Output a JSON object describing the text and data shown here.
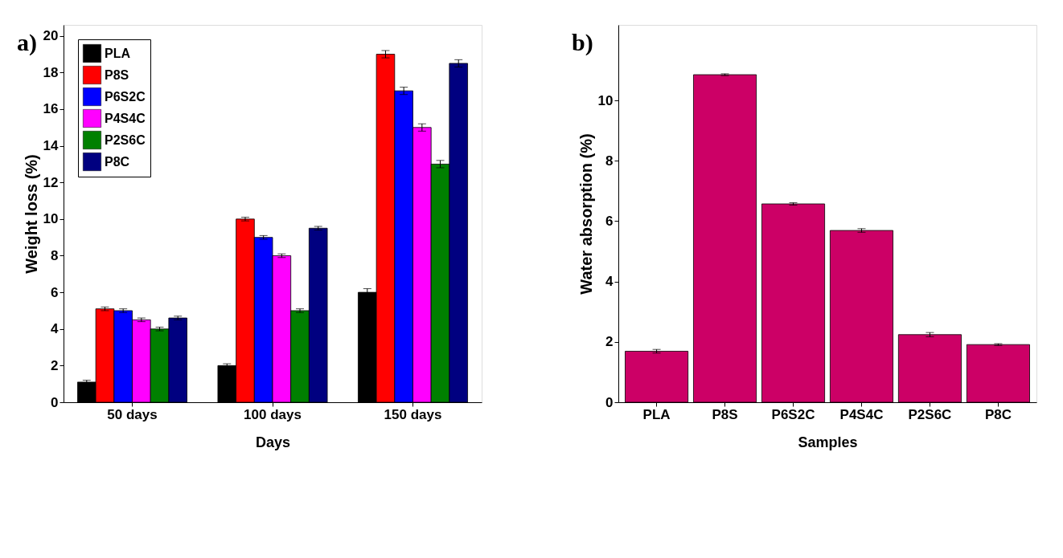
{
  "chart_data": [
    {
      "type": "bar",
      "xlabel": "Days",
      "ylabel": "Weight loss (%)",
      "categories": [
        "50 days",
        "100 days",
        "150 days"
      ],
      "series": [
        {
          "name": "PLA",
          "color": "#000000",
          "values": [
            1.1,
            2.0,
            6.0
          ],
          "errors": [
            0.1,
            0.1,
            0.2
          ]
        },
        {
          "name": "P8S",
          "color": "#ff0000",
          "values": [
            5.1,
            10.0,
            19.0
          ],
          "errors": [
            0.1,
            0.1,
            0.2
          ]
        },
        {
          "name": "P6S2C",
          "color": "#0000ff",
          "values": [
            5.0,
            9.0,
            17.0
          ],
          "errors": [
            0.1,
            0.1,
            0.2
          ]
        },
        {
          "name": "P4S4C",
          "color": "#ff00ff",
          "values": [
            4.5,
            8.0,
            15.0
          ],
          "errors": [
            0.1,
            0.1,
            0.2
          ]
        },
        {
          "name": "P2S6C",
          "color": "#008000",
          "values": [
            4.0,
            5.0,
            13.0
          ],
          "errors": [
            0.1,
            0.1,
            0.2
          ]
        },
        {
          "name": "P8C",
          "color": "#000080",
          "values": [
            4.6,
            9.5,
            18.5
          ],
          "errors": [
            0.1,
            0.1,
            0.2
          ]
        }
      ],
      "ylim": [
        0,
        20.6
      ],
      "yticks": [
        0,
        2,
        4,
        6,
        8,
        10,
        12,
        14,
        16,
        18,
        20
      ],
      "legend": "top left",
      "grid": false,
      "annotations": [
        "a)"
      ]
    },
    {
      "type": "bar",
      "xlabel": "Samples",
      "ylabel": "Water absorption (%)",
      "categories": [
        "PLA",
        "P8S",
        "P6S2C",
        "P4S4C",
        "P2S6C",
        "P8C"
      ],
      "values": [
        1.69,
        10.85,
        6.57,
        5.69,
        2.24,
        1.91
      ],
      "errors": [
        0.06,
        0.03,
        0.04,
        0.06,
        0.07,
        0.03
      ],
      "color": "#cc0066",
      "ylim": [
        0,
        12.5
      ],
      "yticks": [
        0,
        2,
        4,
        6,
        8,
        10
      ],
      "grid": false,
      "annotations": [
        "b)"
      ]
    }
  ]
}
